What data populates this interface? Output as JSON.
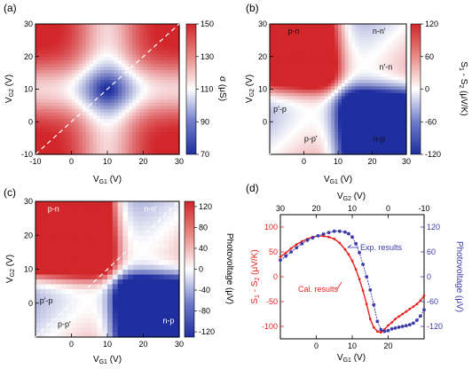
{
  "colors": {
    "cold": "#1f2f9f",
    "neutral": "#ffffff",
    "hot": "#d1262a",
    "calc": "#e8221e",
    "exp": "#3a3aa8",
    "diag": "#ffffff"
  },
  "chart_data": [
    {
      "panel": "(a)",
      "type": "heatmap",
      "title": "",
      "xlabel": "V_G1 (V)",
      "ylabel": "V_G2 (V)",
      "xlim": [
        -10,
        30
      ],
      "ylim": [
        -10,
        30
      ],
      "xticks": [
        "-10",
        "0",
        "10",
        "20",
        "30"
      ],
      "yticks": [
        "-10",
        "0",
        "10",
        "20",
        "30"
      ],
      "colorbar": {
        "label": "σ (μS)",
        "min": 70,
        "max": 150,
        "ticks": [
          "150",
          "130",
          "110",
          "90",
          "70"
        ]
      },
      "dirac_point": [
        10,
        10
      ],
      "diagonal": true
    },
    {
      "panel": "(b)",
      "type": "heatmap",
      "title": "",
      "xlabel": "V_G1 (V)",
      "ylabel": "V_G2 (V)",
      "xlim": [
        -10,
        30
      ],
      "ylim": [
        -10,
        30
      ],
      "xticks": [
        "0",
        "10",
        "20",
        "30"
      ],
      "yticks": [
        "0",
        "10",
        "20",
        "30"
      ],
      "colorbar": {
        "label": "S1 - S2 (μV/K)",
        "min": -120,
        "max": 120,
        "ticks": [
          "120",
          "60",
          "0",
          "-60",
          "-120"
        ]
      },
      "regions": [
        "p-n",
        "n-n'",
        "n'-n",
        "p'-p",
        "p-p'",
        "n-p"
      ],
      "diagonal": true
    },
    {
      "panel": "(c)",
      "type": "heatmap",
      "title": "",
      "xlabel": "V_G1 (V)",
      "ylabel": "V_G2 (V)",
      "xlim": [
        -10,
        30
      ],
      "ylim": [
        -10,
        30
      ],
      "xticks": [
        "0",
        "10",
        "20",
        "30"
      ],
      "yticks": [
        "0",
        "10",
        "20",
        "30"
      ],
      "colorbar": {
        "label": "Photovoltage (μV)",
        "min": -130,
        "max": 130,
        "ticks": [
          "120",
          "80",
          "40",
          "0",
          "-40",
          "-80",
          "-120"
        ]
      },
      "regions": [
        "p-n",
        "n-n'",
        "n'-n",
        "p'-p",
        "p-p'",
        "n-p"
      ],
      "diagonal": true
    },
    {
      "panel": "(d)",
      "type": "scatter",
      "title": "",
      "xlabel": "V_G1 (V)",
      "x2label": "V_G2 (V)",
      "ylabel": "S1 - S2 (μV/K)",
      "y2label": "Photovoltage (μV)",
      "xlim": [
        -10,
        30
      ],
      "x2lim": [
        30,
        -10
      ],
      "ylim": [
        -125,
        125
      ],
      "y2lim": [
        -150,
        150
      ],
      "xticks": [
        "0",
        "10",
        "20"
      ],
      "x2ticks": [
        "30",
        "20",
        "10",
        "0",
        "-10"
      ],
      "yticks": [
        "100",
        "50",
        "0",
        "-50",
        "-100"
      ],
      "y2ticks": [
        "120",
        "60",
        "0",
        "-60",
        "-120"
      ],
      "series": [
        {
          "name": "Cal. results",
          "axis": "left",
          "x": [
            -10,
            -8.5,
            -7,
            -5.5,
            -4,
            -2.5,
            -1,
            0.5,
            2,
            3.5,
            5,
            6.5,
            8,
            9,
            10,
            11,
            12,
            13,
            14,
            15,
            16,
            17,
            18,
            19,
            20,
            21,
            22,
            23,
            24,
            25,
            26,
            27,
            28,
            29,
            30
          ],
          "values": [
            40,
            48,
            57,
            65,
            71,
            76,
            80,
            82,
            82,
            80,
            76,
            68,
            55,
            45,
            32,
            15,
            -5,
            -28,
            -55,
            -85,
            -102,
            -110,
            -112,
            -106,
            -98,
            -92,
            -85,
            -80,
            -75,
            -70,
            -65,
            -60,
            -55,
            -48,
            -38
          ]
        },
        {
          "name": "Exp. results",
          "axis": "right",
          "x": [
            -10,
            -8.5,
            -7,
            -5.5,
            -4,
            -2.5,
            -1,
            0.5,
            2,
            3.5,
            5,
            6.5,
            8,
            9,
            10,
            11,
            12,
            13,
            14,
            15,
            16,
            17,
            18,
            19,
            20,
            21,
            22,
            23,
            24,
            25,
            26,
            27,
            28,
            29,
            30
          ],
          "values": [
            40,
            50,
            60,
            70,
            80,
            88,
            94,
            99,
            103,
            107,
            110,
            110,
            108,
            104,
            96,
            80,
            58,
            30,
            0,
            -32,
            -68,
            -108,
            -128,
            -132,
            -130,
            -126,
            -124,
            -122,
            -120,
            -118,
            -116,
            -112,
            -105,
            -95,
            -80
          ]
        }
      ],
      "annotations": [
        "Exp. results",
        "Cal. results"
      ]
    }
  ]
}
